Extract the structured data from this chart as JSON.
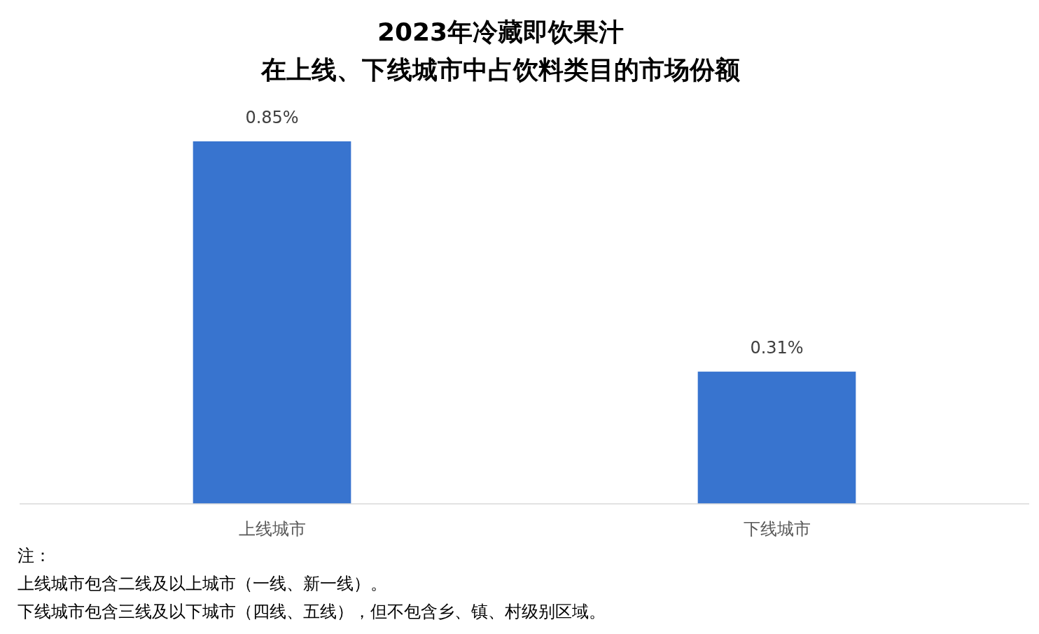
{
  "chart_data": {
    "type": "bar",
    "title": "2023年冷藏即饮果汁",
    "subtitle": "在上线、下线城市中占饮料类目的市场份额",
    "categories": [
      "上线城市",
      "下线城市"
    ],
    "values": [
      0.85,
      0.31
    ],
    "value_labels": [
      "0.85%",
      "0.31%"
    ],
    "color": "#3874cf",
    "annotations": [
      "注：",
      "上线城市包含二线及以上城市（一线、新一线）。",
      "下线城市包含三线及以下城市（四线、五线），但不包含乡、镇、村级别区域。"
    ]
  }
}
